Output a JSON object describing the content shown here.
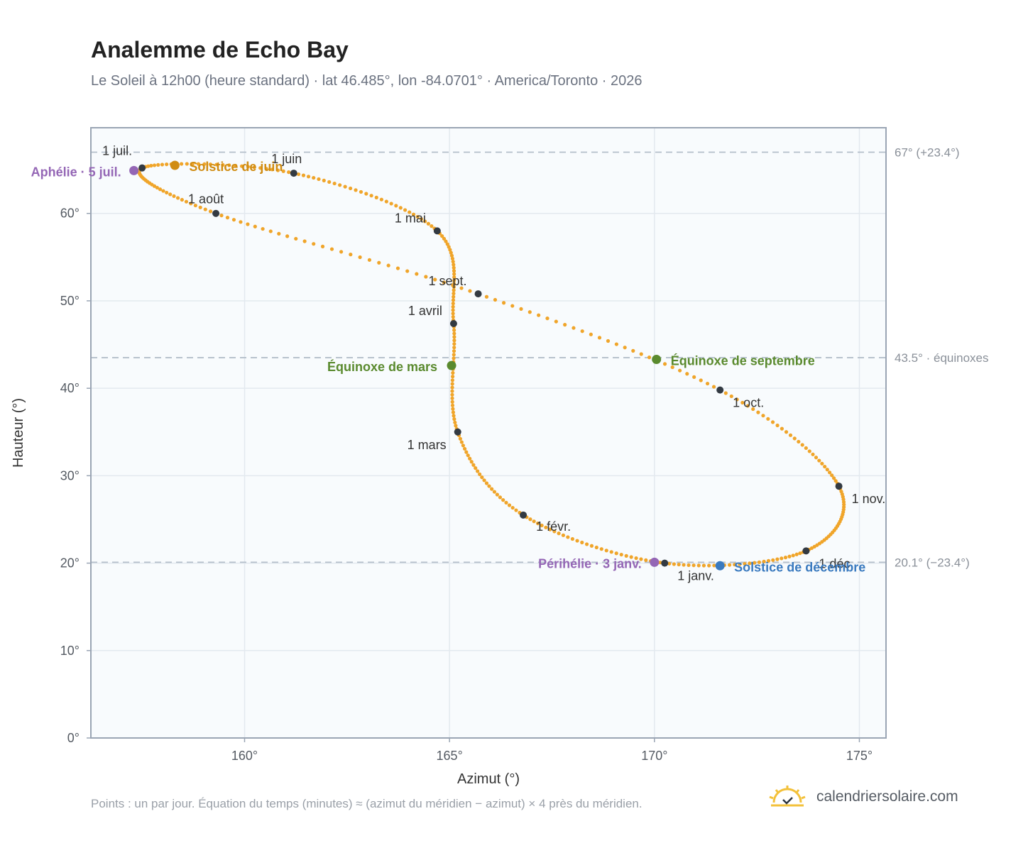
{
  "header": {
    "title": "Analemme de Echo Bay",
    "subtitle": "Le Soleil à 12h00 (heure standard) · lat 46.485°, lon -84.0701° · America/Toronto · 2026"
  },
  "footer": {
    "note": "Points : un par jour. Équation du temps (minutes) ≈ (azimut du méridien − azimut) × 4 près du méridien.",
    "brand": "calendriersolaire.com"
  },
  "colors": {
    "curve": "#f0a52a",
    "month_dot": "#333a42",
    "solstice_june": "#d08c12",
    "solstice_december": "#3a7abf",
    "equinox": "#5a8a2e",
    "apsis": "#9466b5",
    "plot_bg": "#f8fbfd",
    "grid": "#e3e9ef",
    "ref_line": "#b4bfca",
    "frame": "#9aa5b4"
  },
  "chart_data": {
    "type": "scatter",
    "title": "Analemme de Echo Bay",
    "xlabel": "Azimut (°)",
    "ylabel": "Hauteur (°)",
    "xlim": [
      156.25,
      175.65
    ],
    "ylim": [
      0,
      69.8
    ],
    "x_ticks": [
      {
        "value": 160,
        "label": "160°"
      },
      {
        "value": 165,
        "label": "165°"
      },
      {
        "value": 170,
        "label": "170°"
      },
      {
        "value": 175,
        "label": "175°"
      }
    ],
    "y_ticks": [
      {
        "value": 0,
        "label": "0°"
      },
      {
        "value": 10,
        "label": "10°"
      },
      {
        "value": 20,
        "label": "20°"
      },
      {
        "value": 30,
        "label": "30°"
      },
      {
        "value": 40,
        "label": "40°"
      },
      {
        "value": 50,
        "label": "50°"
      },
      {
        "value": 60,
        "label": "60°"
      }
    ],
    "grid": true,
    "reference_lines": [
      {
        "y": 67,
        "label": "67° (+23.4°)"
      },
      {
        "y": 43.5,
        "label": "43.5° · équinoxes"
      },
      {
        "y": 20.1,
        "label": "20.1° (−23.4°)"
      }
    ],
    "months": [
      {
        "label": "1 janv.",
        "azimuth": 170.25,
        "altitude": 20.0
      },
      {
        "label": "1 févr.",
        "azimuth": 166.8,
        "altitude": 25.5
      },
      {
        "label": "1 mars",
        "azimuth": 165.2,
        "altitude": 35.0
      },
      {
        "label": "1 avril",
        "azimuth": 165.1,
        "altitude": 47.4
      },
      {
        "label": "1 mai",
        "azimuth": 164.7,
        "altitude": 58.0
      },
      {
        "label": "1 juin",
        "azimuth": 161.2,
        "altitude": 64.6
      },
      {
        "label": "1 juil.",
        "azimuth": 157.5,
        "altitude": 65.2
      },
      {
        "label": "1 août",
        "azimuth": 159.3,
        "altitude": 60.0
      },
      {
        "label": "1 sept.",
        "azimuth": 165.7,
        "altitude": 50.8
      },
      {
        "label": "1 oct.",
        "azimuth": 171.6,
        "altitude": 39.8
      },
      {
        "label": "1 nov.",
        "azimuth": 174.5,
        "altitude": 28.8
      },
      {
        "label": "1 déc.",
        "azimuth": 173.7,
        "altitude": 21.4
      }
    ],
    "events": [
      {
        "label": "Solstice de juin",
        "azimuth": 158.3,
        "altitude": 65.5
      },
      {
        "label": "Aphélie · 5 juil.",
        "azimuth": 157.3,
        "altitude": 64.9
      },
      {
        "label": "Équinoxe de mars",
        "azimuth": 165.05,
        "altitude": 42.6
      },
      {
        "label": "Équinoxe de septembre",
        "azimuth": 170.05,
        "altitude": 43.3
      },
      {
        "label": "Périhélie · 3 janv.",
        "azimuth": 170.0,
        "altitude": 20.1
      },
      {
        "label": "Solstice de décembre",
        "azimuth": 171.6,
        "altitude": 19.7
      }
    ]
  }
}
